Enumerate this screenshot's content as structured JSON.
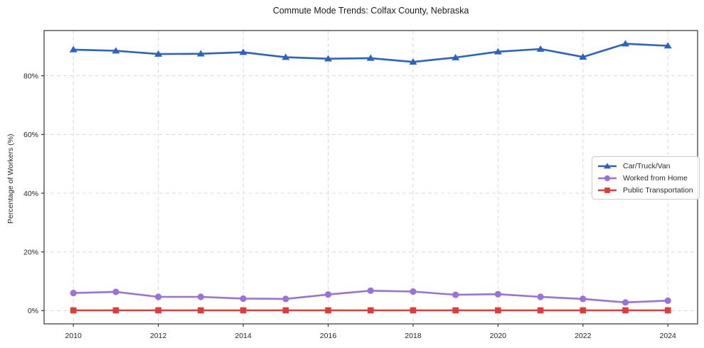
{
  "chart_data": {
    "type": "line",
    "title": "Commute Mode Trends: Colfax County, Nebraska",
    "xlabel": "",
    "ylabel": "Percentage of Workers (%)",
    "x": [
      2010,
      2011,
      2012,
      2013,
      2014,
      2015,
      2016,
      2017,
      2018,
      2019,
      2020,
      2021,
      2022,
      2023,
      2024
    ],
    "series": [
      {
        "name": "Car/Truck/Van",
        "marker": "triangle",
        "color": "#2b62c5",
        "values": [
          88.9,
          88.5,
          87.4,
          87.5,
          88.0,
          86.3,
          85.8,
          86.0,
          84.7,
          86.2,
          88.2,
          89.1,
          86.4,
          90.9,
          90.2
        ]
      },
      {
        "name": "Worked from Home",
        "marker": "circle",
        "color": "#9b72d8",
        "values": [
          6.0,
          6.4,
          4.7,
          4.7,
          4.1,
          4.0,
          5.5,
          6.8,
          6.5,
          5.4,
          5.6,
          4.7,
          4.0,
          2.8,
          3.4
        ]
      },
      {
        "name": "Public Transportation",
        "marker": "square",
        "color": "#e03a3a",
        "values": [
          0.1,
          0.1,
          0.1,
          0.1,
          0.1,
          0.1,
          0.1,
          0.1,
          0.1,
          0.1,
          0.1,
          0.1,
          0.1,
          0.1,
          0.1
        ]
      }
    ],
    "xticks": [
      2010,
      2012,
      2014,
      2016,
      2018,
      2020,
      2022,
      2024
    ],
    "yticks": [
      0,
      20,
      40,
      60,
      80
    ],
    "ytick_suffix": "%",
    "xlim": [
      2009.31,
      2024.7
    ],
    "ylim": [
      -4.5,
      95.4
    ],
    "grid": true,
    "legend_position": "center-right",
    "grid_color": "#d8d8d8",
    "spine_color": "#333333"
  }
}
